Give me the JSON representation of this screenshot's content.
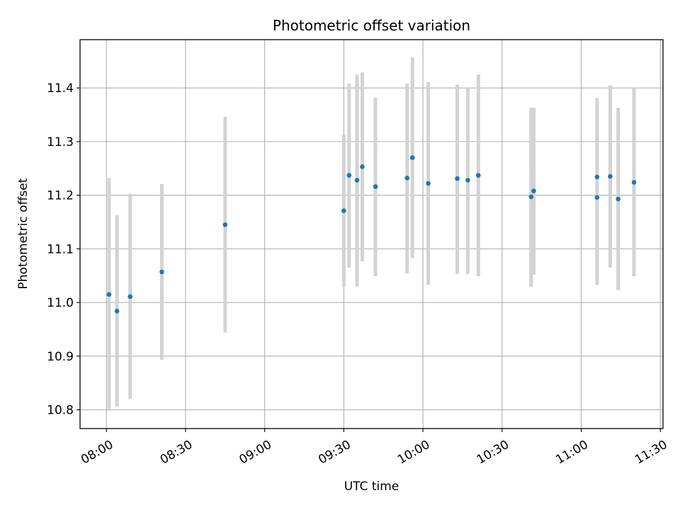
{
  "chart_data": {
    "type": "scatter",
    "title": "Photometric offset variation",
    "xlabel": "UTC time",
    "ylabel": "Photometric offset",
    "xlim": [
      "07:50",
      "11:31"
    ],
    "ylim": [
      10.765,
      11.49
    ],
    "x_ticks": [
      "08:00",
      "08:30",
      "09:00",
      "09:30",
      "10:00",
      "10:30",
      "11:00",
      "11:30"
    ],
    "y_ticks": [
      "10.8",
      "10.9",
      "11.0",
      "11.1",
      "11.2",
      "11.3",
      "11.4"
    ],
    "grid": true,
    "colors": {
      "point": "#1f77b4",
      "errorbar": "#d3d3d3",
      "grid": "#b0b0b0"
    },
    "points": [
      {
        "x": "08:01",
        "y": 11.015,
        "lo": 10.798,
        "hi": 11.232
      },
      {
        "x": "08:04",
        "y": 10.984,
        "lo": 10.806,
        "hi": 11.163
      },
      {
        "x": "08:09",
        "y": 11.011,
        "lo": 10.82,
        "hi": 11.203
      },
      {
        "x": "08:21",
        "y": 11.057,
        "lo": 10.893,
        "hi": 11.221
      },
      {
        "x": "08:45",
        "y": 11.145,
        "lo": 10.944,
        "hi": 11.346
      },
      {
        "x": "09:30",
        "y": 11.171,
        "lo": 11.03,
        "hi": 11.312
      },
      {
        "x": "09:32",
        "y": 11.237,
        "lo": 11.065,
        "hi": 11.408
      },
      {
        "x": "09:35",
        "y": 11.228,
        "lo": 11.03,
        "hi": 11.425
      },
      {
        "x": "09:37",
        "y": 11.253,
        "lo": 11.077,
        "hi": 11.429
      },
      {
        "x": "09:42",
        "y": 11.216,
        "lo": 11.049,
        "hi": 11.382
      },
      {
        "x": "09:54",
        "y": 11.232,
        "lo": 11.054,
        "hi": 11.408
      },
      {
        "x": "09:56",
        "y": 11.27,
        "lo": 11.083,
        "hi": 11.457
      },
      {
        "x": "10:02",
        "y": 11.222,
        "lo": 11.033,
        "hi": 11.411
      },
      {
        "x": "10:13",
        "y": 11.231,
        "lo": 11.053,
        "hi": 11.406
      },
      {
        "x": "10:17",
        "y": 11.228,
        "lo": 11.053,
        "hi": 11.4
      },
      {
        "x": "10:21",
        "y": 11.237,
        "lo": 11.049,
        "hi": 11.425
      },
      {
        "x": "10:41",
        "y": 11.197,
        "lo": 11.029,
        "hi": 11.363
      },
      {
        "x": "10:42",
        "y": 11.208,
        "lo": 11.052,
        "hi": 11.363
      },
      {
        "x": "11:06",
        "y": 11.234,
        "lo": 11.088,
        "hi": 11.381
      },
      {
        "x": "11:06",
        "y": 11.196,
        "lo": 11.033,
        "hi": 11.361
      },
      {
        "x": "11:11",
        "y": 11.235,
        "lo": 11.065,
        "hi": 11.405
      },
      {
        "x": "11:14",
        "y": 11.193,
        "lo": 11.023,
        "hi": 11.363
      },
      {
        "x": "11:20",
        "y": 11.224,
        "lo": 11.049,
        "hi": 11.4
      }
    ]
  }
}
